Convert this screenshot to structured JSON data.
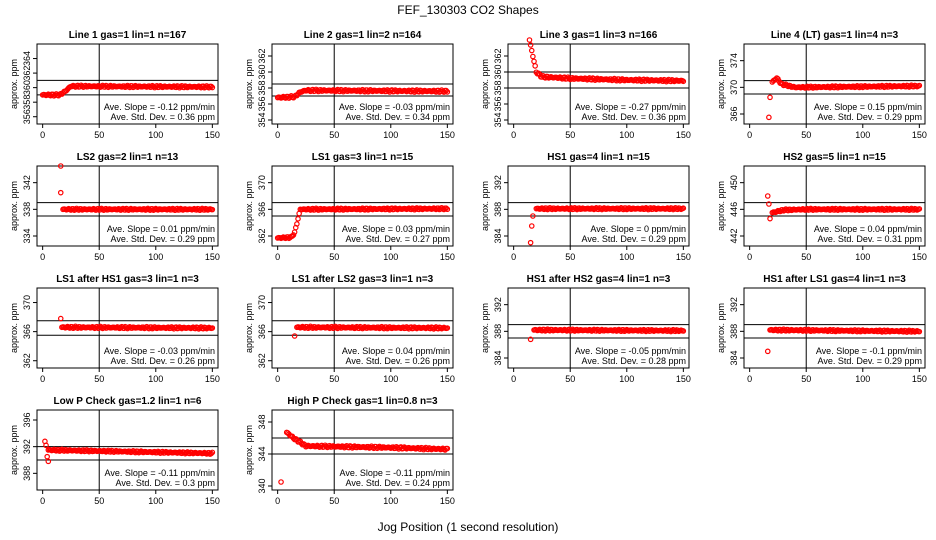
{
  "figure": {
    "title": "FEF_130303  CO2 Shapes",
    "xlabel": "Jog Position (1 second resolution)",
    "ylabel": "approx. ppm",
    "slope_prefix": "Ave. Slope = ",
    "slope_unit": " ppm/min",
    "std_prefix": "Ave. Std. Dev. = ",
    "std_unit": " ppm"
  },
  "colors": {
    "points": "#ff0000",
    "axes": "#000000",
    "background": "#ffffff"
  },
  "chart_data": [
    {
      "type": "scatter",
      "title": "Line 1 gas=1 lin=1 n=167",
      "ylim": [
        355,
        366
      ],
      "yticks": [
        356,
        358,
        360,
        362,
        364
      ],
      "xlim": [
        -5,
        155
      ],
      "xticks": [
        0,
        50,
        100,
        150
      ],
      "hlines": [
        361,
        359
      ],
      "vline": 50,
      "slope": "-0.12",
      "std": "0.36",
      "series": [
        {
          "name": "",
          "shape": [
            [
              0,
              359.0
            ],
            [
              15,
              359.0
            ],
            [
              20,
              359.5
            ],
            [
              25,
              360.2
            ],
            [
              150,
              360.1
            ]
          ],
          "outliers": []
        }
      ]
    },
    {
      "type": "scatter",
      "title": "Line 2 gas=1 lin=2 n=164",
      "ylim": [
        353.5,
        363.5
      ],
      "yticks": [
        354,
        356,
        358,
        360,
        362
      ],
      "xlim": [
        -5,
        155
      ],
      "xticks": [
        0,
        50,
        100,
        150
      ],
      "hlines": [
        358.5,
        357.0
      ],
      "vline": 50,
      "slope": "-0.03",
      "std": "0.34",
      "series": [
        {
          "name": "",
          "shape": [
            [
              0,
              356.8
            ],
            [
              15,
              356.9
            ],
            [
              20,
              357.5
            ],
            [
              25,
              357.7
            ],
            [
              150,
              357.6
            ]
          ],
          "outliers": []
        }
      ]
    },
    {
      "type": "scatter",
      "title": "Line 3 gas=1 lin=3 n=166",
      "ylim": [
        353.5,
        363.5
      ],
      "yticks": [
        354,
        356,
        358,
        360,
        362
      ],
      "xlim": [
        -5,
        155
      ],
      "xticks": [
        0,
        50,
        100,
        150
      ],
      "hlines": [
        360,
        358
      ],
      "vline": 50,
      "slope": "-0.27",
      "std": "0.36",
      "series": [
        {
          "name": "",
          "shape": [
            [
              14,
              364.0
            ],
            [
              17,
              362.0
            ],
            [
              20,
              360.0
            ],
            [
              25,
              359.4
            ],
            [
              50,
              359.2
            ],
            [
              100,
              359.0
            ],
            [
              150,
              358.9
            ]
          ],
          "outliers": []
        }
      ]
    },
    {
      "type": "scatter",
      "title": "Line 4 (LT) gas=1 lin=4 n=3",
      "ylim": [
        364.5,
        376.5
      ],
      "yticks": [
        366,
        370,
        374
      ],
      "xlim": [
        -5,
        155
      ],
      "xticks": [
        0,
        50,
        100,
        150
      ],
      "hlines": [
        371,
        369
      ],
      "vline": 50,
      "slope": "0.15",
      "std": "0.29",
      "series": [
        {
          "name": "",
          "shape": [
            [
              20,
              370.8
            ],
            [
              24,
              371.4
            ],
            [
              28,
              370.5
            ],
            [
              40,
              370.0
            ],
            [
              150,
              370.2
            ]
          ],
          "outliers": [
            [
              17,
              365.5
            ],
            [
              18,
              368.5
            ]
          ]
        }
      ]
    },
    {
      "type": "scatter",
      "title": "LS2 gas=2 lin=1 n=13",
      "ylim": [
        332.5,
        344.5
      ],
      "yticks": [
        334,
        338,
        342
      ],
      "xlim": [
        -5,
        155
      ],
      "xticks": [
        0,
        50,
        100,
        150
      ],
      "hlines": [
        339,
        337
      ],
      "vline": 50,
      "slope": "0.01",
      "std": "0.29",
      "series": [
        {
          "name": "",
          "shape": [
            [
              18,
              338.0
            ],
            [
              150,
              338.0
            ]
          ],
          "outliers": [
            [
              16,
              344.5
            ],
            [
              16,
              340.5
            ]
          ]
        }
      ]
    },
    {
      "type": "scatter",
      "title": "LS1 gas=3 lin=1 n=15",
      "ylim": [
        360.5,
        372.5
      ],
      "yticks": [
        362,
        366,
        370
      ],
      "xlim": [
        -5,
        155
      ],
      "xticks": [
        0,
        50,
        100,
        150
      ],
      "hlines": [
        367,
        365
      ],
      "vline": 50,
      "slope": "0.03",
      "std": "0.27",
      "series": [
        {
          "name": "",
          "shape": [
            [
              0,
              361.7
            ],
            [
              12,
              361.8
            ],
            [
              15,
              362.5
            ],
            [
              20,
              366.0
            ],
            [
              150,
              366.1
            ]
          ],
          "outliers": []
        }
      ]
    },
    {
      "type": "scatter",
      "title": "HS1 gas=4 lin=1 n=15",
      "ylim": [
        382.5,
        394.5
      ],
      "yticks": [
        384,
        388,
        392
      ],
      "xlim": [
        -5,
        155
      ],
      "xticks": [
        0,
        50,
        100,
        150
      ],
      "hlines": [
        389,
        387
      ],
      "vline": 50,
      "slope": "0",
      "std": "0.29",
      "series": [
        {
          "name": "",
          "shape": [
            [
              20,
              388.1
            ],
            [
              150,
              388.1
            ]
          ],
          "outliers": [
            [
              15,
              383.0
            ],
            [
              16,
              385.5
            ],
            [
              17,
              387.0
            ]
          ]
        }
      ]
    },
    {
      "type": "scatter",
      "title": "HS2 gas=5 lin=1 n=15",
      "ylim": [
        440.5,
        452.5
      ],
      "yticks": [
        442,
        446,
        450
      ],
      "xlim": [
        -5,
        155
      ],
      "xticks": [
        0,
        50,
        100,
        150
      ],
      "hlines": [
        447,
        445
      ],
      "vline": 50,
      "slope": "0.04",
      "std": "0.31",
      "series": [
        {
          "name": "",
          "shape": [
            [
              20,
              445.5
            ],
            [
              30,
              445.9
            ],
            [
              50,
              446.0
            ],
            [
              150,
              446.0
            ]
          ],
          "outliers": [
            [
              16,
              448.0
            ],
            [
              17,
              446.8
            ],
            [
              18,
              444.6
            ]
          ]
        }
      ]
    },
    {
      "type": "scatter",
      "title": "LS1 after HS1 gas=3 lin=1 n=3",
      "ylim": [
        361,
        372
      ],
      "yticks": [
        362,
        366,
        370
      ],
      "xlim": [
        -5,
        155
      ],
      "xticks": [
        0,
        50,
        100,
        150
      ],
      "hlines": [
        367.5,
        365.5
      ],
      "vline": 50,
      "slope": "-0.03",
      "std": "0.26",
      "series": [
        {
          "name": "",
          "shape": [
            [
              17,
              366.6
            ],
            [
              150,
              366.5
            ]
          ],
          "outliers": [
            [
              16,
              367.8
            ]
          ]
        }
      ]
    },
    {
      "type": "scatter",
      "title": "LS1 after LS2 gas=3 lin=1 n=3",
      "ylim": [
        361,
        372
      ],
      "yticks": [
        362,
        366,
        370
      ],
      "xlim": [
        -5,
        155
      ],
      "xticks": [
        0,
        50,
        100,
        150
      ],
      "hlines": [
        367.5,
        365.5
      ],
      "vline": 50,
      "slope": "0.04",
      "std": "0.26",
      "series": [
        {
          "name": "",
          "shape": [
            [
              17,
              366.6
            ],
            [
              150,
              366.5
            ]
          ],
          "outliers": [
            [
              15,
              365.4
            ]
          ]
        }
      ]
    },
    {
      "type": "scatter",
      "title": "HS1 after HS2 gas=4 lin=1 n=3",
      "ylim": [
        382.5,
        394.5
      ],
      "yticks": [
        384,
        388,
        392
      ],
      "xlim": [
        -5,
        155
      ],
      "xticks": [
        0,
        50,
        100,
        150
      ],
      "hlines": [
        389,
        387
      ],
      "vline": 50,
      "slope": "-0.05",
      "std": "0.28",
      "series": [
        {
          "name": "",
          "shape": [
            [
              18,
              388.2
            ],
            [
              150,
              388.1
            ]
          ],
          "outliers": [
            [
              15,
              386.8
            ]
          ]
        }
      ]
    },
    {
      "type": "scatter",
      "title": "HS1 after LS1 gas=4 lin=1 n=3",
      "ylim": [
        382.5,
        394.5
      ],
      "yticks": [
        384,
        388,
        392
      ],
      "xlim": [
        -5,
        155
      ],
      "xticks": [
        0,
        50,
        100,
        150
      ],
      "hlines": [
        389,
        387
      ],
      "vline": 50,
      "slope": "-0.1",
      "std": "0.29",
      "series": [
        {
          "name": "",
          "shape": [
            [
              18,
              388.2
            ],
            [
              150,
              388.0
            ]
          ],
          "outliers": [
            [
              16,
              385.0
            ]
          ]
        }
      ]
    },
    {
      "type": "scatter",
      "title": "Low P Check gas=1.2 lin=1 n=6",
      "ylim": [
        385.5,
        397.5
      ],
      "yticks": [
        388,
        392,
        396
      ],
      "xlim": [
        -5,
        155
      ],
      "xticks": [
        0,
        50,
        100,
        150
      ],
      "hlines": [
        392,
        390
      ],
      "vline": 50,
      "slope": "-0.11",
      "std": "0.3",
      "series": [
        {
          "name": "",
          "shape": [
            [
              5,
              391.5
            ],
            [
              150,
              391.0
            ]
          ],
          "outliers": [
            [
              2,
              392.8
            ],
            [
              3,
              392.2
            ],
            [
              4,
              390.5
            ],
            [
              5,
              389.8
            ]
          ]
        }
      ]
    },
    {
      "type": "scatter",
      "title": "High P Check gas=1 lin=0.8 n=3",
      "ylim": [
        339.5,
        349.5
      ],
      "yticks": [
        340,
        344,
        348
      ],
      "xlim": [
        -5,
        155
      ],
      "xticks": [
        0,
        50,
        100,
        150
      ],
      "hlines": [
        346,
        344
      ],
      "vline": 50,
      "slope": "-0.11",
      "std": "0.24",
      "series": [
        {
          "name": "",
          "shape": [
            [
              8,
              346.7
            ],
            [
              14,
              346.0
            ],
            [
              25,
              345.0
            ],
            [
              100,
              344.8
            ],
            [
              150,
              344.6
            ]
          ],
          "outliers": [
            [
              3,
              340.5
            ]
          ]
        }
      ]
    }
  ]
}
